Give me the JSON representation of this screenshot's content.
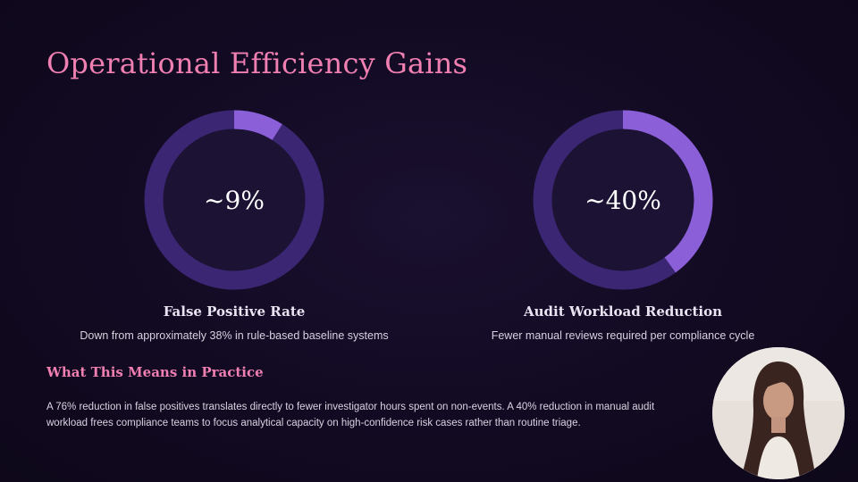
{
  "slide": {
    "title": "Operational Efficiency Gains"
  },
  "metrics": [
    {
      "value_text": "~9%",
      "fraction": 0.09,
      "label": "False Positive Rate",
      "description": "Down from approximately 38% in rule-based baseline systems"
    },
    {
      "value_text": "~40%",
      "fraction": 0.4,
      "label": "Audit Workload Reduction",
      "description": "Fewer manual reviews required per compliance cycle"
    }
  ],
  "section": {
    "heading": "What This Means in Practice",
    "body": "A 76% reduction in false positives translates directly to fewer investigator hours spent on non-events. A 40% reduction in manual audit workload frees compliance teams to focus analytical capacity on high-confidence risk cases rather than routine triage."
  },
  "colors": {
    "accent": "#f07fb2",
    "ring_track": "#3a2672",
    "ring_fill": "#8b5fd8",
    "ring_inner": "#1c1234"
  },
  "webcam": {
    "icon": "presenter-video"
  }
}
